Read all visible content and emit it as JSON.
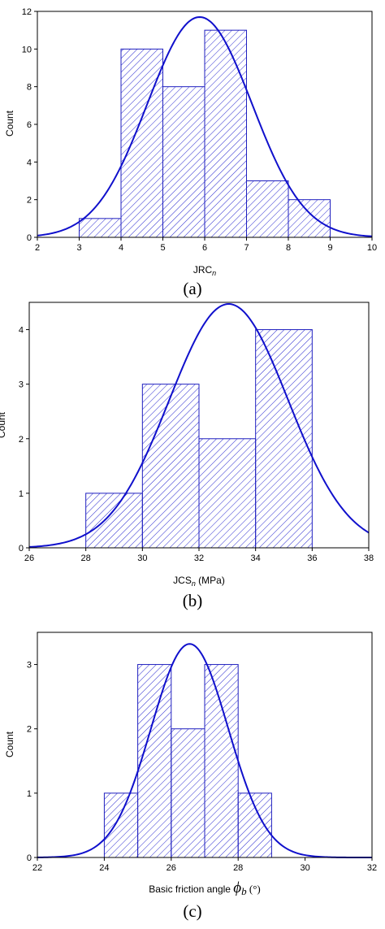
{
  "colors": {
    "bar_stroke": "#1f1fbf",
    "hatch": "#2a2ad0",
    "curve": "#1010cc",
    "axis": "#000000"
  },
  "chart_data": [
    {
      "panel": "(a)",
      "type": "bar",
      "histogram": true,
      "xlabel": "JRC",
      "xlabel_sub": "n",
      "ylabel": "Count",
      "xlim": [
        2,
        10
      ],
      "ylim": [
        0,
        12
      ],
      "xticks": [
        2,
        3,
        4,
        5,
        6,
        7,
        8,
        9,
        10
      ],
      "yticks": [
        0,
        2,
        4,
        6,
        8,
        10,
        12
      ],
      "bins": [
        [
          3,
          4
        ],
        [
          4,
          5
        ],
        [
          5,
          6
        ],
        [
          6,
          7
        ],
        [
          7,
          8
        ],
        [
          8,
          9
        ]
      ],
      "values": [
        1,
        10,
        8,
        11,
        3,
        2
      ],
      "fit_curve": {
        "type": "normal",
        "mean": 5.88,
        "sd": 1.25,
        "peak": 11.7
      }
    },
    {
      "panel": "(b)",
      "type": "bar",
      "histogram": true,
      "xlabel": "JCS",
      "xlabel_sub": "n",
      "xlabel_suffix": " (MPa)",
      "ylabel": "Count",
      "xlim": [
        26,
        38
      ],
      "ylim": [
        0,
        4.5
      ],
      "xticks": [
        26,
        28,
        30,
        32,
        34,
        36,
        38
      ],
      "yticks": [
        0,
        1,
        2,
        3,
        4
      ],
      "bins": [
        [
          28,
          30
        ],
        [
          30,
          32
        ],
        [
          32,
          34
        ],
        [
          34,
          36
        ]
      ],
      "values": [
        1,
        3,
        2,
        4
      ],
      "fit_curve": {
        "type": "normal",
        "mean": 33.05,
        "sd": 2.1,
        "peak": 4.47
      }
    },
    {
      "panel": "(c)",
      "type": "bar",
      "histogram": true,
      "xlabel": "Basic friction angle",
      "xlabel_symbol": "ϕ",
      "xlabel_sub": "b",
      "xlabel_suffix": " (°)",
      "ylabel": "Count",
      "xlim": [
        22,
        32
      ],
      "ylim": [
        0,
        3.5
      ],
      "xticks": [
        22,
        24,
        26,
        28,
        30,
        32
      ],
      "yticks": [
        0,
        1,
        2,
        3
      ],
      "bins": [
        [
          24,
          25
        ],
        [
          25,
          26
        ],
        [
          26,
          27
        ],
        [
          27,
          28
        ],
        [
          28,
          29
        ]
      ],
      "values": [
        1,
        3,
        2,
        3,
        1
      ],
      "fit_curve": {
        "type": "normal",
        "mean": 26.55,
        "sd": 1.15,
        "peak": 3.32
      }
    }
  ]
}
